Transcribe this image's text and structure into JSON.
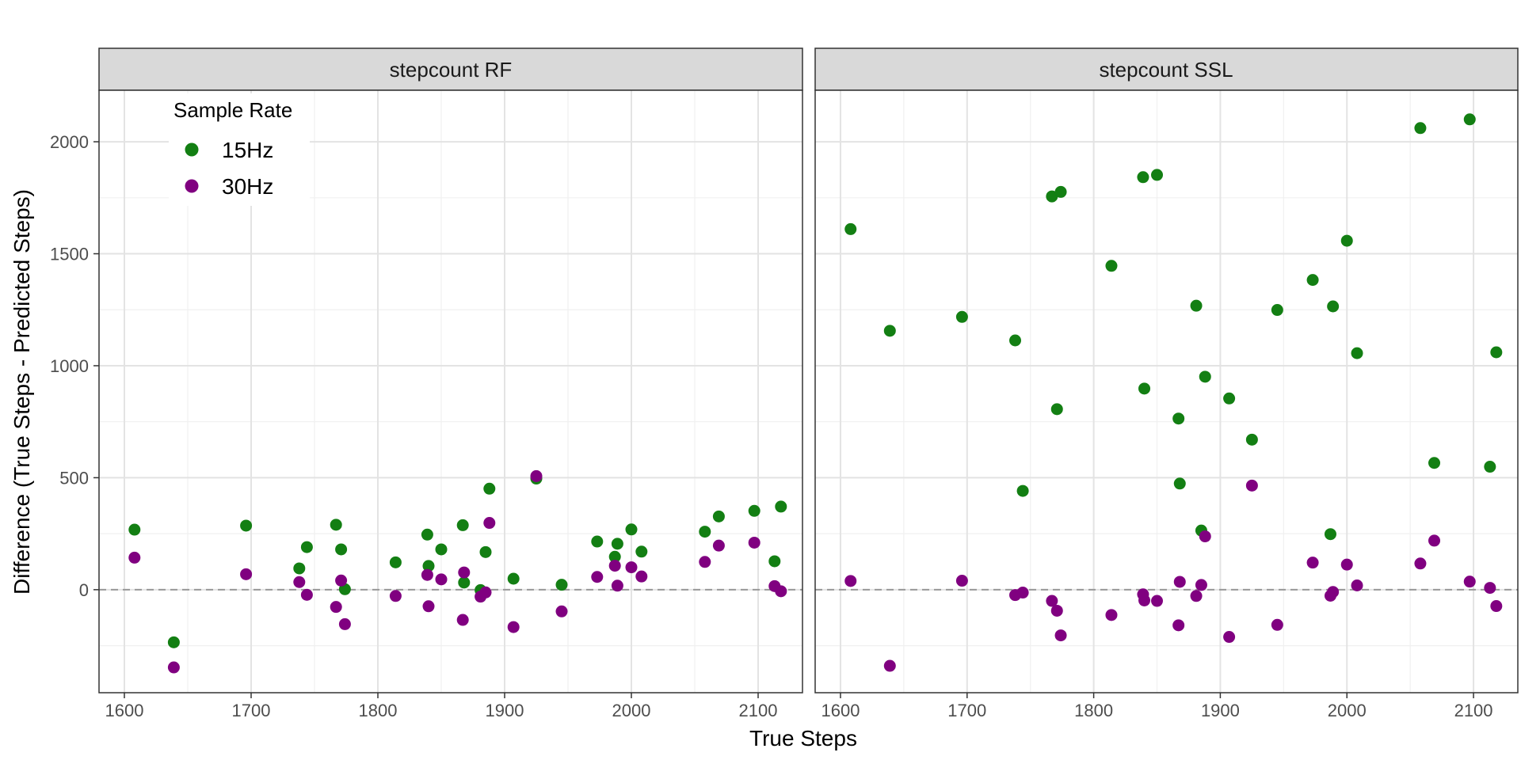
{
  "chart_data": {
    "type": "scatter",
    "xlabel": "True Steps",
    "ylabel": "Difference (True Steps - Predicted Steps)",
    "xlim": [
      1580,
      2135
    ],
    "ylim": [
      -460,
      2230
    ],
    "x_ticks": [
      1600,
      1700,
      1800,
      1900,
      2000,
      2100
    ],
    "y_ticks": [
      0,
      500,
      1000,
      1500,
      2000
    ],
    "reference_line": {
      "y": 0,
      "style": "dashed",
      "color": "#999999"
    },
    "grid": true,
    "legend": {
      "title": "Sample Rate",
      "placement": "top-left inside first panel",
      "entries": [
        {
          "label": "15Hz",
          "color": "#137f13"
        },
        {
          "label": "30Hz",
          "color": "#800080"
        }
      ]
    },
    "panels": [
      {
        "title": "stepcount RF",
        "series": [
          {
            "name": "15Hz",
            "color": "#137f13",
            "points": [
              [
                1608,
                268
              ],
              [
                1639,
                -235
              ],
              [
                1696,
                286
              ],
              [
                1738,
                95
              ],
              [
                1744,
                190
              ],
              [
                1767,
                290
              ],
              [
                1771,
                180
              ],
              [
                1774,
                2
              ],
              [
                1814,
                122
              ],
              [
                1839,
                246
              ],
              [
                1840,
                106
              ],
              [
                1850,
                180
              ],
              [
                1867,
                288
              ],
              [
                1868,
                32
              ],
              [
                1881,
                -2
              ],
              [
                1885,
                168
              ],
              [
                1888,
                451
              ],
              [
                1907,
                49
              ],
              [
                1925,
                496
              ],
              [
                1945,
                22
              ],
              [
                1973,
                215
              ],
              [
                1987,
                147
              ],
              [
                1989,
                205
              ],
              [
                2000,
                269
              ],
              [
                2008,
                170
              ],
              [
                2058,
                259
              ],
              [
                2069,
                327
              ],
              [
                2097,
                352
              ],
              [
                2113,
                127
              ],
              [
                2118,
                371
              ]
            ]
          },
          {
            "name": "30Hz",
            "color": "#800080",
            "points": [
              [
                1608,
                143
              ],
              [
                1639,
                -347
              ],
              [
                1696,
                69
              ],
              [
                1738,
                34
              ],
              [
                1744,
                -23
              ],
              [
                1767,
                -77
              ],
              [
                1771,
                41
              ],
              [
                1774,
                -154
              ],
              [
                1814,
                -28
              ],
              [
                1839,
                66
              ],
              [
                1840,
                -74
              ],
              [
                1850,
                46
              ],
              [
                1867,
                -135
              ],
              [
                1868,
                77
              ],
              [
                1881,
                -31
              ],
              [
                1885,
                -12
              ],
              [
                1888,
                298
              ],
              [
                1907,
                -167
              ],
              [
                1925,
                507
              ],
              [
                1945,
                -97
              ],
              [
                1973,
                57
              ],
              [
                1987,
                107
              ],
              [
                1989,
                18
              ],
              [
                2000,
                100
              ],
              [
                2008,
                59
              ],
              [
                2058,
                124
              ],
              [
                2069,
                197
              ],
              [
                2097,
                210
              ],
              [
                2113,
                16
              ],
              [
                2118,
                -7
              ]
            ]
          }
        ]
      },
      {
        "title": "stepcount SSL",
        "series": [
          {
            "name": "15Hz",
            "color": "#137f13",
            "points": [
              [
                1608,
                1610
              ],
              [
                1639,
                1156
              ],
              [
                1696,
                1218
              ],
              [
                1738,
                1113
              ],
              [
                1744,
                441
              ],
              [
                1767,
                1756
              ],
              [
                1771,
                806
              ],
              [
                1774,
                1776
              ],
              [
                1814,
                1446
              ],
              [
                1839,
                1842
              ],
              [
                1840,
                898
              ],
              [
                1850,
                1852
              ],
              [
                1867,
                764
              ],
              [
                1868,
                474
              ],
              [
                1881,
                1268
              ],
              [
                1885,
                264
              ],
              [
                1888,
                951
              ],
              [
                1907,
                854
              ],
              [
                1925,
                670
              ],
              [
                1945,
                1249
              ],
              [
                1973,
                1383
              ],
              [
                1987,
                248
              ],
              [
                1989,
                1265
              ],
              [
                2000,
                1558
              ],
              [
                2008,
                1056
              ],
              [
                2058,
                2061
              ],
              [
                2069,
                566
              ],
              [
                2097,
                2100
              ],
              [
                2113,
                549
              ],
              [
                2118,
                1060
              ]
            ]
          },
          {
            "name": "30Hz",
            "color": "#800080",
            "points": [
              [
                1608,
                39
              ],
              [
                1639,
                -340
              ],
              [
                1696,
                40
              ],
              [
                1738,
                -24
              ],
              [
                1744,
                -13
              ],
              [
                1767,
                -50
              ],
              [
                1771,
                -94
              ],
              [
                1774,
                -204
              ],
              [
                1814,
                -113
              ],
              [
                1839,
                -21
              ],
              [
                1840,
                -48
              ],
              [
                1850,
                -50
              ],
              [
                1867,
                -159
              ],
              [
                1868,
                35
              ],
              [
                1881,
                -28
              ],
              [
                1885,
                21
              ],
              [
                1888,
                238
              ],
              [
                1907,
                -211
              ],
              [
                1925,
                465
              ],
              [
                1945,
                -157
              ],
              [
                1973,
                121
              ],
              [
                1987,
                -27
              ],
              [
                1989,
                -10
              ],
              [
                2000,
                112
              ],
              [
                2008,
                19
              ],
              [
                2058,
                117
              ],
              [
                2069,
                219
              ],
              [
                2097,
                36
              ],
              [
                2113,
                8
              ],
              [
                2118,
                -73
              ]
            ]
          }
        ]
      }
    ]
  }
}
